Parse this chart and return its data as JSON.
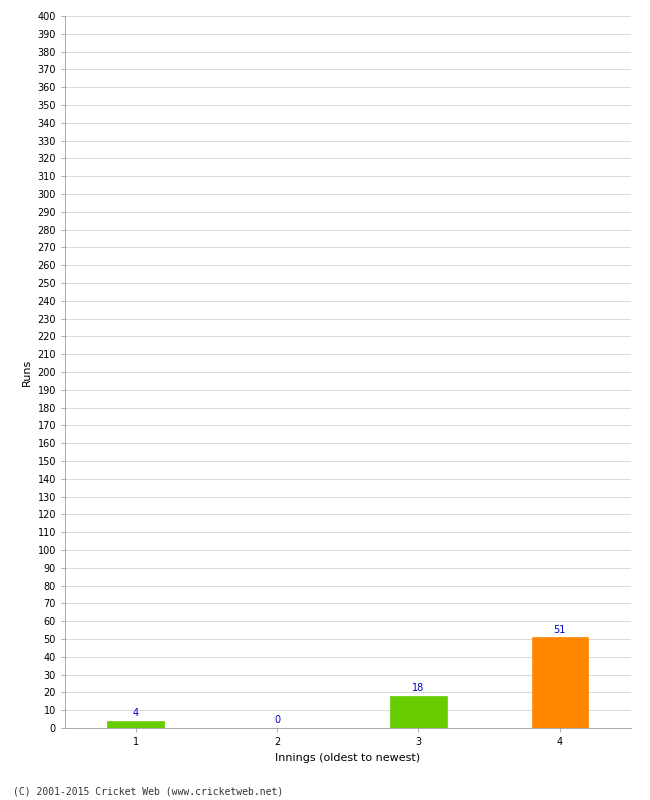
{
  "categories": [
    1,
    2,
    3,
    4
  ],
  "values": [
    4,
    0,
    18,
    51
  ],
  "bar_colors": [
    "#66cc00",
    "#66cc00",
    "#66cc00",
    "#ff8800"
  ],
  "xlabel": "Innings (oldest to newest)",
  "ylabel": "Runs",
  "ylim": [
    0,
    400
  ],
  "ytick_step": 10,
  "background_color": "#ffffff",
  "grid_color": "#cccccc",
  "label_color": "#0000cc",
  "label_fontsize": 7,
  "axis_label_fontsize": 8,
  "tick_fontsize": 7,
  "footer": "(C) 2001-2015 Cricket Web (www.cricketweb.net)",
  "bar_width": 0.4,
  "xlim": [
    0.5,
    4.5
  ]
}
